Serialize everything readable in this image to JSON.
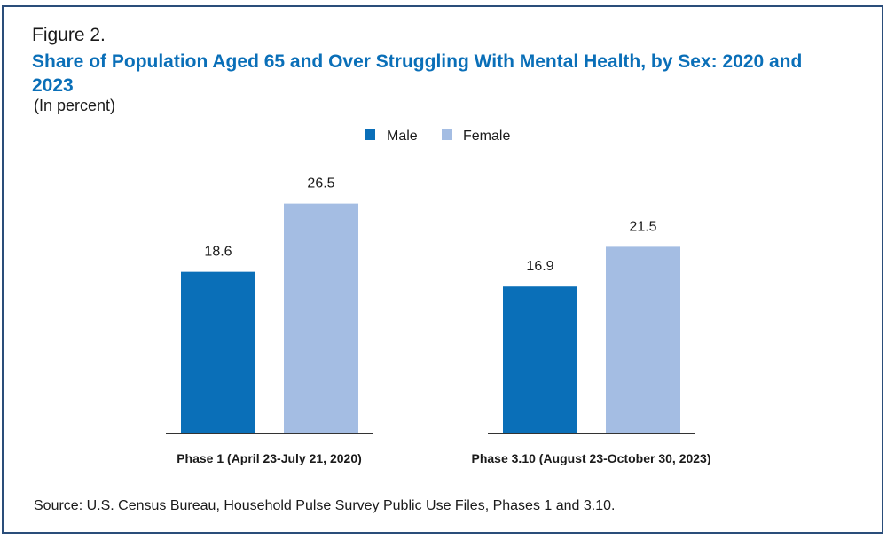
{
  "figure_label": "Figure 2.",
  "title": "Share of Population Aged 65 and Over Struggling With Mental Health, by Sex: 2020 and 2023",
  "subtitle": "(In percent)",
  "source": "Source: U.S. Census Bureau, Household Pulse Survey Public Use Files, Phases 1 and 3.10.",
  "colors": {
    "male": "#0a6fb8",
    "female": "#a4bde3",
    "title": "#0a6fb8",
    "frame": "#2a4d7a"
  },
  "chart_data": {
    "type": "bar",
    "categories": [
      "Phase 1 (April 23-July 21, 2020)",
      "Phase 3.10 (August 23-October 30, 2023)"
    ],
    "series": [
      {
        "name": "Male",
        "values": [
          18.6,
          16.9
        ]
      },
      {
        "name": "Female",
        "values": [
          26.5,
          21.5
        ]
      }
    ],
    "title": "Share of Population Aged 65 and Over Struggling With Mental Health, by Sex: 2020 and 2023",
    "xlabel": "",
    "ylabel": "(In percent)",
    "ylim": [
      0,
      30
    ],
    "legend": "top-center",
    "grid": false
  }
}
